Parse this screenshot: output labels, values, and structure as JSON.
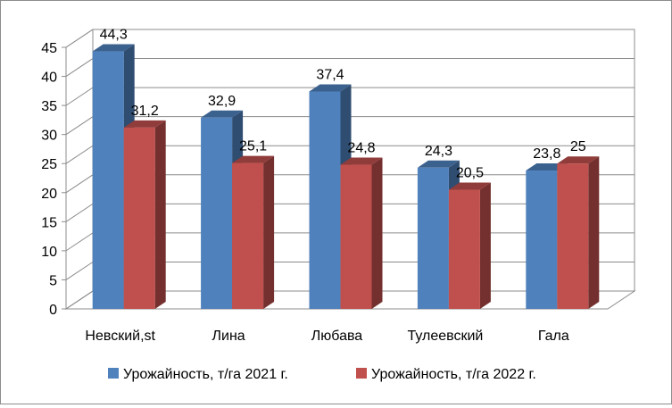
{
  "chart_data": {
    "type": "bar",
    "categories": [
      "Невский,st",
      "Лина",
      "Любава",
      "Тулеевский",
      "Гала"
    ],
    "series": [
      {
        "name": "Урожайность, т/га 2021 г.",
        "values": [
          44.3,
          32.9,
          37.4,
          24.3,
          23.8
        ],
        "labels": [
          "44,3",
          "32,9",
          "37,4",
          "24,3",
          "23,8"
        ],
        "color": "#4F81BD"
      },
      {
        "name": "Урожайность, т/га 2022 г.",
        "values": [
          31.2,
          25.1,
          24.8,
          20.5,
          25
        ],
        "labels": [
          "31,2",
          "25,1",
          "24,8",
          "20,5",
          "25"
        ],
        "color": "#C0504D"
      }
    ],
    "ylim": [
      0,
      45
    ],
    "yticks": [
      "0",
      "5",
      "10",
      "15",
      "20",
      "25",
      "30",
      "35",
      "40",
      "45"
    ],
    "ytick_values": [
      0,
      5,
      10,
      15,
      20,
      25,
      30,
      35,
      40,
      45
    ],
    "grid": true,
    "style": "3d-clustered-column",
    "legend_position": "bottom"
  }
}
